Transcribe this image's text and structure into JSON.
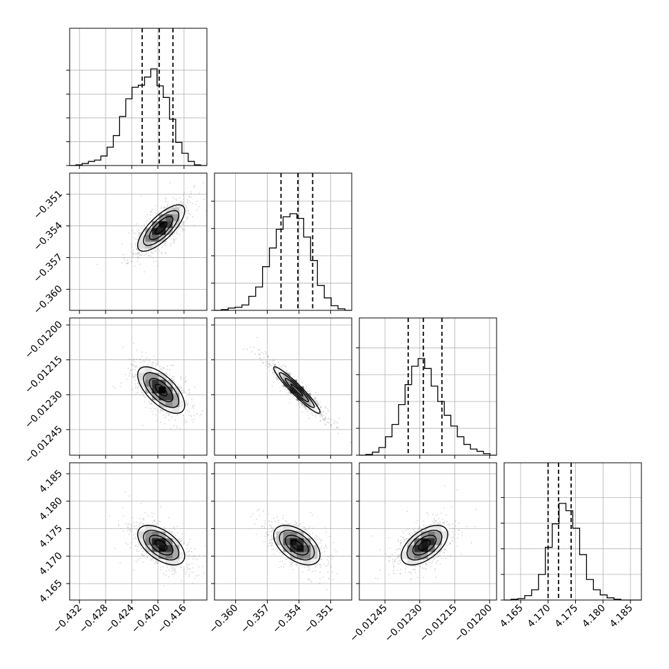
{
  "chart_data": {
    "type": "corner",
    "grid": true,
    "parameters": [
      {
        "range": [
          -0.4335,
          -0.4125
        ],
        "ticks": [
          -0.432,
          -0.428,
          -0.424,
          -0.42,
          -0.416
        ],
        "tick_labels": [
          "−0.432",
          "−0.428",
          "−0.424",
          "−0.420",
          "−0.416"
        ],
        "quantiles": [
          -0.4224,
          -0.4198,
          -0.4177
        ],
        "mean": -0.4195,
        "sd": 0.0018,
        "hist_counts": [
          0,
          1,
          3,
          6,
          8,
          14,
          27,
          44,
          72,
          98,
          115,
          118,
          130,
          142,
          117,
          100,
          68,
          34,
          18,
          6,
          1,
          0
        ]
      },
      {
        "range": [
          -0.362,
          -0.349
        ],
        "ticks": [
          -0.36,
          -0.357,
          -0.354,
          -0.351
        ],
        "tick_labels": [
          "−0.360",
          "−0.357",
          "−0.354",
          "−0.351"
        ],
        "quantiles": [
          -0.3557,
          -0.3541,
          -0.3527
        ],
        "mean": -0.3542,
        "sd": 0.0011,
        "hist_counts": [
          0,
          1,
          3,
          4,
          7,
          18,
          30,
          56,
          80,
          104,
          120,
          124,
          118,
          94,
          64,
          32,
          16,
          6,
          2,
          0
        ]
      },
      {
        "range": [
          -0.01256,
          -0.01197
        ],
        "ticks": [
          -0.01245,
          -0.0123,
          -0.01215,
          -0.012
        ],
        "tick_labels": [
          "−0.01245",
          "−0.01230",
          "−0.01215",
          "−0.01200"
        ],
        "quantiles": [
          -0.01235,
          -0.012285,
          -0.012205
        ],
        "mean": -0.01228,
        "sd": 5e-05,
        "hist_counts": [
          0,
          1,
          4,
          10,
          24,
          40,
          66,
          92,
          116,
          126,
          113,
          90,
          70,
          52,
          38,
          24,
          14,
          8,
          5,
          2,
          0
        ]
      },
      {
        "range": [
          4.162,
          4.187
        ],
        "ticks": [
          4.165,
          4.17,
          4.175,
          4.18,
          4.185
        ],
        "tick_labels": [
          "4.165",
          "4.170",
          "4.175",
          "4.180",
          "4.185"
        ],
        "quantiles": [
          4.17,
          4.1719,
          4.1742
        ],
        "mean": 4.172,
        "sd": 0.0018,
        "hist_counts": [
          0,
          1,
          2,
          6,
          14,
          35,
          72,
          104,
          132,
          122,
          98,
          62,
          28,
          14,
          7,
          3,
          1,
          0,
          0,
          0
        ]
      }
    ],
    "correlations": {
      "1-0": 0.75,
      "2-0": -0.65,
      "2-1": -0.95,
      "3-0": -0.55,
      "3-1": -0.5,
      "3-2": 0.55
    },
    "contour_levels_sigma": [
      0.5,
      1.0,
      1.5,
      2.0
    ],
    "colors": {
      "line": "#000000",
      "grid": "#b0b0b0",
      "points": "#888888"
    }
  }
}
